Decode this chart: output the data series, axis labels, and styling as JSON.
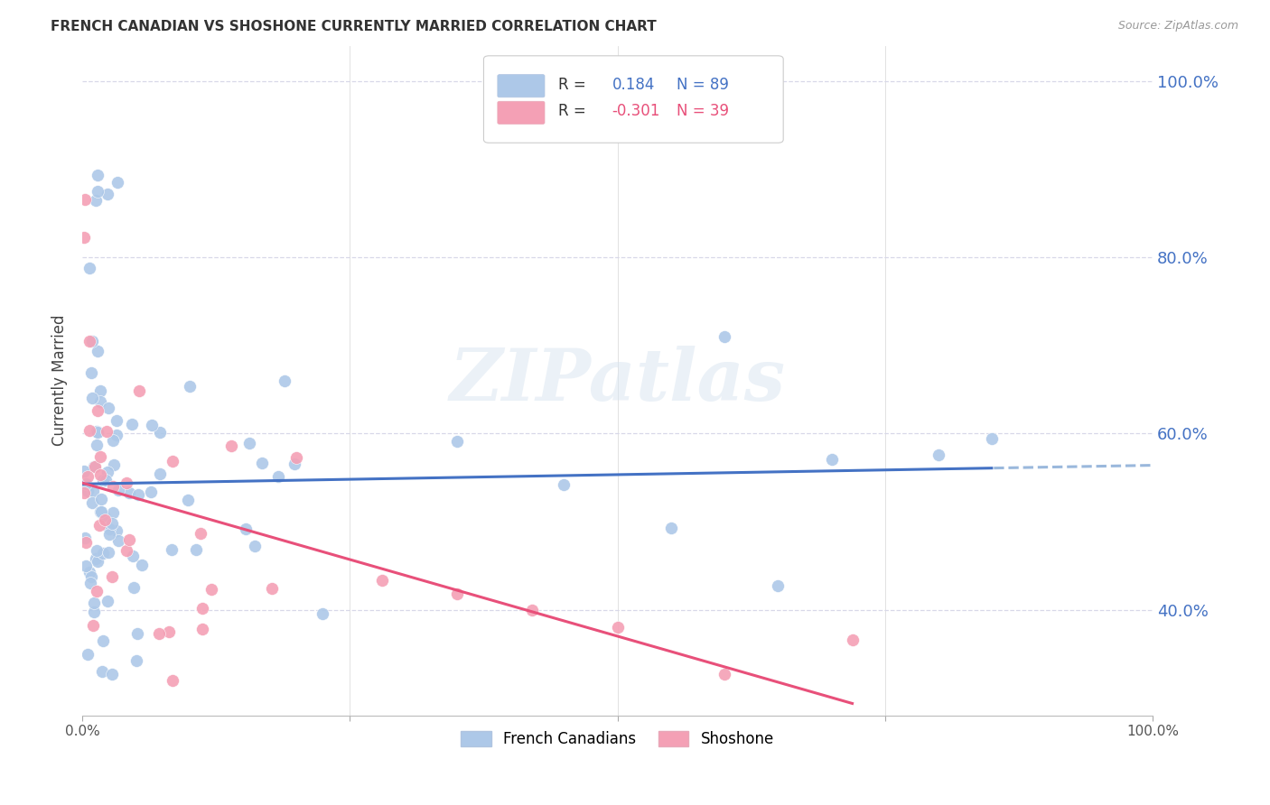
{
  "title": "FRENCH CANADIAN VS SHOSHONE CURRENTLY MARRIED CORRELATION CHART",
  "source": "Source: ZipAtlas.com",
  "ylabel": "Currently Married",
  "r_french": 0.184,
  "n_french": 89,
  "r_shoshone": -0.301,
  "n_shoshone": 39,
  "legend_labels": [
    "French Canadians",
    "Shoshone"
  ],
  "french_color": "#adc8e8",
  "shoshone_color": "#f4a0b5",
  "french_line_color": "#4472c4",
  "shoshone_line_color": "#e8507a",
  "french_line_dash_color": "#9ab8dc",
  "right_axis_color": "#4472c4",
  "watermark": "ZIPatlas",
  "yticks": [
    0.4,
    0.6,
    0.8,
    1.0
  ],
  "ytick_labels_right": [
    "40.0%",
    "60.0%",
    "80.0%",
    "100.0%"
  ],
  "background_color": "#ffffff",
  "grid_color": "#d8d8e8"
}
